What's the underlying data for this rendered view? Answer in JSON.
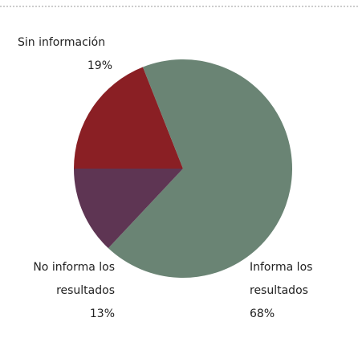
{
  "chart_data": {
    "type": "pie",
    "categories": [
      "Informa los resultados",
      "Sin información",
      "No informa los resultados"
    ],
    "values": [
      68,
      19,
      13
    ],
    "value_labels": [
      "68%",
      "19%",
      "13%"
    ],
    "colors": [
      "#6a8474",
      "#8a1f24",
      "#5e3553"
    ]
  }
}
